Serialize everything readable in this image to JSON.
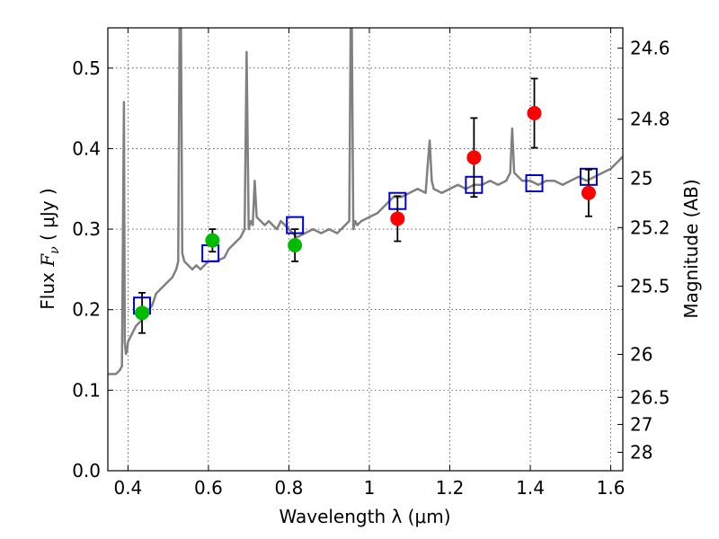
{
  "chart_data": {
    "type": "line",
    "xlabel": "Wavelength  λ (μm)",
    "ylabel_prefix": "Flux  ",
    "ylabel_var": "F",
    "ylabel_sub": "ν",
    "ylabel_suffix": "  ( μJy )",
    "y2label": "Magnitude (AB)",
    "xlim": [
      0.35,
      1.63
    ],
    "ylim": [
      0.0,
      0.55
    ],
    "grid": true,
    "xticks": [
      0.4,
      0.6,
      0.8,
      1.0,
      1.2,
      1.4,
      1.6
    ],
    "xtick_labels": [
      "0.4",
      "0.6",
      "0.8",
      "1",
      "1.2",
      "1.4",
      "1.6"
    ],
    "yticks": [
      0.0,
      0.1,
      0.2,
      0.3,
      0.4,
      0.5
    ],
    "ytick_labels": [
      "0.0",
      "0.1",
      "0.2",
      "0.3",
      "0.4",
      "0.5"
    ],
    "y2ticks": [
      {
        "label": "24.6",
        "flux": 0.5248
      },
      {
        "label": "24.8",
        "flux": 0.4365
      },
      {
        "label": "25",
        "flux": 0.3631
      },
      {
        "label": "25.2",
        "flux": 0.302
      },
      {
        "label": "25.5",
        "flux": 0.2291
      },
      {
        "label": "26",
        "flux": 0.1445
      },
      {
        "label": "26.5",
        "flux": 0.0912
      },
      {
        "label": "27",
        "flux": 0.0575
      },
      {
        "label": "28",
        "flux": 0.0229
      }
    ],
    "series": [
      {
        "style": "line",
        "color": "#808080",
        "x": [
          0.35,
          0.36,
          0.37,
          0.38,
          0.385,
          0.39,
          0.392,
          0.395,
          0.398,
          0.4,
          0.41,
          0.42,
          0.43,
          0.44,
          0.45,
          0.46,
          0.47,
          0.48,
          0.49,
          0.5,
          0.51,
          0.52,
          0.525,
          0.53,
          0.535,
          0.54,
          0.55,
          0.56,
          0.57,
          0.58,
          0.59,
          0.6,
          0.62,
          0.64,
          0.65,
          0.66,
          0.67,
          0.68,
          0.69,
          0.695,
          0.7,
          0.705,
          0.71,
          0.715,
          0.72,
          0.73,
          0.74,
          0.75,
          0.76,
          0.77,
          0.78,
          0.79,
          0.8,
          0.82,
          0.84,
          0.86,
          0.88,
          0.9,
          0.92,
          0.94,
          0.95,
          0.955,
          0.96,
          0.965,
          0.97,
          0.98,
          1.0,
          1.02,
          1.04,
          1.06,
          1.08,
          1.1,
          1.12,
          1.14,
          1.145,
          1.15,
          1.155,
          1.16,
          1.18,
          1.2,
          1.22,
          1.24,
          1.26,
          1.28,
          1.3,
          1.32,
          1.34,
          1.35,
          1.355,
          1.36,
          1.37,
          1.38,
          1.4,
          1.42,
          1.44,
          1.46,
          1.48,
          1.5,
          1.52,
          1.54,
          1.56,
          1.58,
          1.6,
          1.62,
          1.63
        ],
        "y": [
          0.12,
          0.12,
          0.12,
          0.125,
          0.13,
          0.458,
          0.16,
          0.145,
          0.15,
          0.16,
          0.17,
          0.18,
          0.185,
          0.19,
          0.2,
          0.205,
          0.22,
          0.225,
          0.23,
          0.235,
          0.24,
          0.25,
          0.26,
          0.7,
          0.27,
          0.26,
          0.255,
          0.25,
          0.255,
          0.25,
          0.255,
          0.26,
          0.26,
          0.265,
          0.275,
          0.28,
          0.285,
          0.29,
          0.3,
          0.52,
          0.3,
          0.31,
          0.305,
          0.36,
          0.315,
          0.31,
          0.305,
          0.31,
          0.305,
          0.3,
          0.31,
          0.305,
          0.3,
          0.29,
          0.295,
          0.3,
          0.295,
          0.3,
          0.295,
          0.305,
          0.31,
          0.65,
          0.3,
          0.31,
          0.305,
          0.31,
          0.315,
          0.32,
          0.33,
          0.34,
          0.34,
          0.345,
          0.35,
          0.345,
          0.38,
          0.41,
          0.36,
          0.35,
          0.345,
          0.35,
          0.355,
          0.35,
          0.355,
          0.355,
          0.36,
          0.355,
          0.36,
          0.37,
          0.425,
          0.37,
          0.365,
          0.36,
          0.36,
          0.355,
          0.36,
          0.36,
          0.355,
          0.36,
          0.365,
          0.36,
          0.365,
          0.37,
          0.375,
          0.385,
          0.39
        ]
      },
      {
        "style": "square",
        "color": "#0000cc",
        "x": [
          0.435,
          0.605,
          0.815,
          1.07,
          1.26,
          1.41,
          1.545
        ],
        "y": [
          0.205,
          0.27,
          0.305,
          0.335,
          0.355,
          0.357,
          0.365
        ]
      },
      {
        "style": "circle",
        "color": "#00bb00",
        "x": [
          0.435,
          0.61,
          0.815
        ],
        "y": [
          0.196,
          0.286,
          0.28
        ],
        "err": [
          0.025,
          0.014,
          0.02
        ]
      },
      {
        "style": "circle",
        "color": "#ff0000",
        "x": [
          1.07,
          1.26,
          1.41,
          1.545
        ],
        "y": [
          0.313,
          0.389,
          0.444,
          0.345
        ],
        "err": [
          0.028,
          0.049,
          0.043,
          0.029
        ]
      }
    ]
  }
}
